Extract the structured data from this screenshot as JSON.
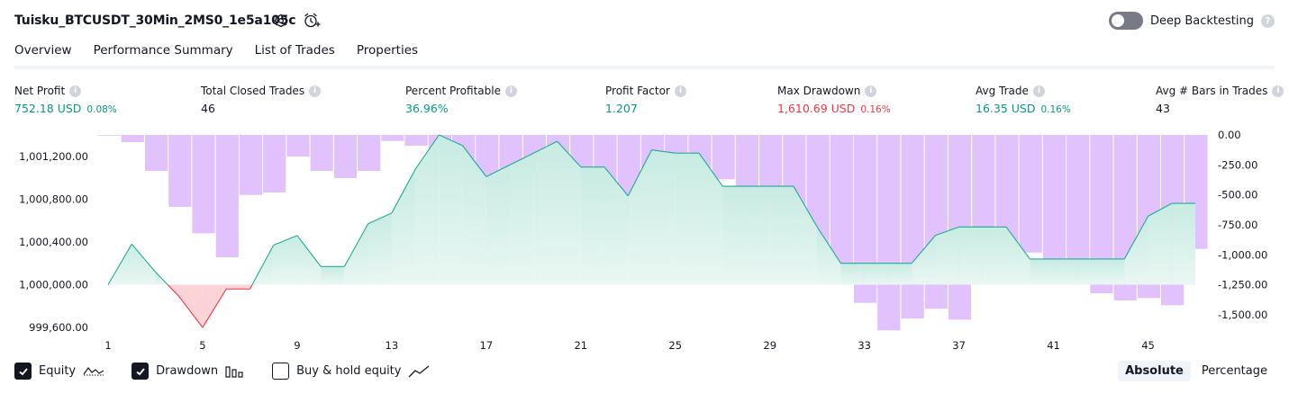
{
  "header": {
    "strategy_title": "Tuisku_BTCUSDT_30Min_2MS0_1e5a105c",
    "deep_backtesting_label": "Deep Backtesting",
    "deep_backtesting_enabled": false,
    "help_glyph": "?"
  },
  "tabs": [
    {
      "label": "Overview",
      "active": true
    },
    {
      "label": "Performance Summary",
      "active": false
    },
    {
      "label": "List of Trades",
      "active": false
    },
    {
      "label": "Properties",
      "active": false
    }
  ],
  "metrics": {
    "net_profit": {
      "label": "Net Profit",
      "value": "752.18 USD",
      "pct": "0.08%"
    },
    "total_closed_trades": {
      "label": "Total Closed Trades",
      "value": "46"
    },
    "percent_profitable": {
      "label": "Percent Profitable",
      "value": "36.96%"
    },
    "profit_factor": {
      "label": "Profit Factor",
      "value": "1.207"
    },
    "max_drawdown": {
      "label": "Max Drawdown",
      "value": "1,610.69 USD",
      "pct": "0.16%"
    },
    "avg_trade": {
      "label": "Avg Trade",
      "value": "16.35 USD",
      "pct": "0.16%"
    },
    "avg_bars_in_trades": {
      "label": "Avg # Bars in Trades",
      "value": "43"
    }
  },
  "colors": {
    "positive": "#089981",
    "negative": "#f23645",
    "drawdown_bar": "#e1c2fc",
    "equity_line": "#22ab94",
    "equity_fill_top": "#c7ebe2",
    "loss_line": "#f23645",
    "loss_fill": "#fccdd0"
  },
  "chart_data": {
    "type": "line+bar",
    "x_ticks": [
      "1",
      "5",
      "9",
      "13",
      "17",
      "21",
      "25",
      "29",
      "33",
      "37",
      "41",
      "45"
    ],
    "x_range": [
      1,
      47
    ],
    "left_axis": {
      "ticks": [
        "1,001,200.00",
        "1,000,800.00",
        "1,000,400.00",
        "1,000,000.00",
        "999,600.00"
      ],
      "tick_values": [
        1001200,
        1000800,
        1000400,
        1000000,
        999600
      ],
      "range": [
        999550,
        1001400
      ]
    },
    "right_axis": {
      "ticks": [
        "0.00",
        "-250.00",
        "-500.00",
        "-750.00",
        "-1,000.00",
        "-1,250.00",
        "-1,500.00"
      ],
      "tick_values": [
        0,
        -250,
        -500,
        -750,
        -1000,
        -1250,
        -1500
      ],
      "range": [
        -1650,
        0
      ]
    },
    "equity": {
      "name": "Equity",
      "baseline": 1000000,
      "x": [
        1,
        2,
        3,
        4,
        5,
        6,
        7,
        8,
        9,
        10,
        11,
        12,
        13,
        14,
        15,
        16,
        17,
        18,
        19,
        20,
        21,
        22,
        23,
        24,
        25,
        26,
        27,
        28,
        29,
        30,
        31,
        32,
        33,
        34,
        35,
        36,
        37,
        38,
        39,
        40,
        41,
        42,
        43,
        44,
        45,
        46,
        47
      ],
      "values": [
        1000000,
        1000380,
        1000120,
        999890,
        999600,
        999960,
        999960,
        1000370,
        1000460,
        1000170,
        1000170,
        1000570,
        1000670,
        1001080,
        1001400,
        1001300,
        1001010,
        1001120,
        1001230,
        1001340,
        1001100,
        1001100,
        1000830,
        1001260,
        1001230,
        1001230,
        1000920,
        1000920,
        1000920,
        1000920,
        1000540,
        1000200,
        1000200,
        1000200,
        1000200,
        1000460,
        1000540,
        1000540,
        1000540,
        1000240,
        1000240,
        1000240,
        1000240,
        1000240,
        1000640,
        1000760,
        1000760
      ]
    },
    "drawdown": {
      "name": "Drawdown",
      "values": [
        -5,
        -60,
        -300,
        -600,
        -820,
        -1020,
        -500,
        -480,
        -180,
        -300,
        -360,
        -300,
        -50,
        -90,
        -120,
        -240,
        -420,
        -580,
        -320,
        -210,
        -370,
        -470,
        -680,
        -690,
        -290,
        -280,
        -370,
        -530,
        -540,
        -760,
        -1020,
        -1110,
        -1400,
        -1630,
        -1530,
        -1450,
        -1540,
        -1220,
        -1100,
        -980,
        -1160,
        -1240,
        -1320,
        -1380,
        -1360,
        -1420,
        -950
      ]
    },
    "legend": [
      {
        "label": "Equity",
        "checked": true,
        "icon": "equity-line-icon"
      },
      {
        "label": "Drawdown",
        "checked": true,
        "icon": "drawdown-bars-icon"
      },
      {
        "label": "Buy & hold equity",
        "checked": false,
        "icon": "trend-line-icon"
      }
    ]
  },
  "modes": [
    {
      "label": "Absolute",
      "active": true
    },
    {
      "label": "Percentage",
      "active": false
    }
  ]
}
